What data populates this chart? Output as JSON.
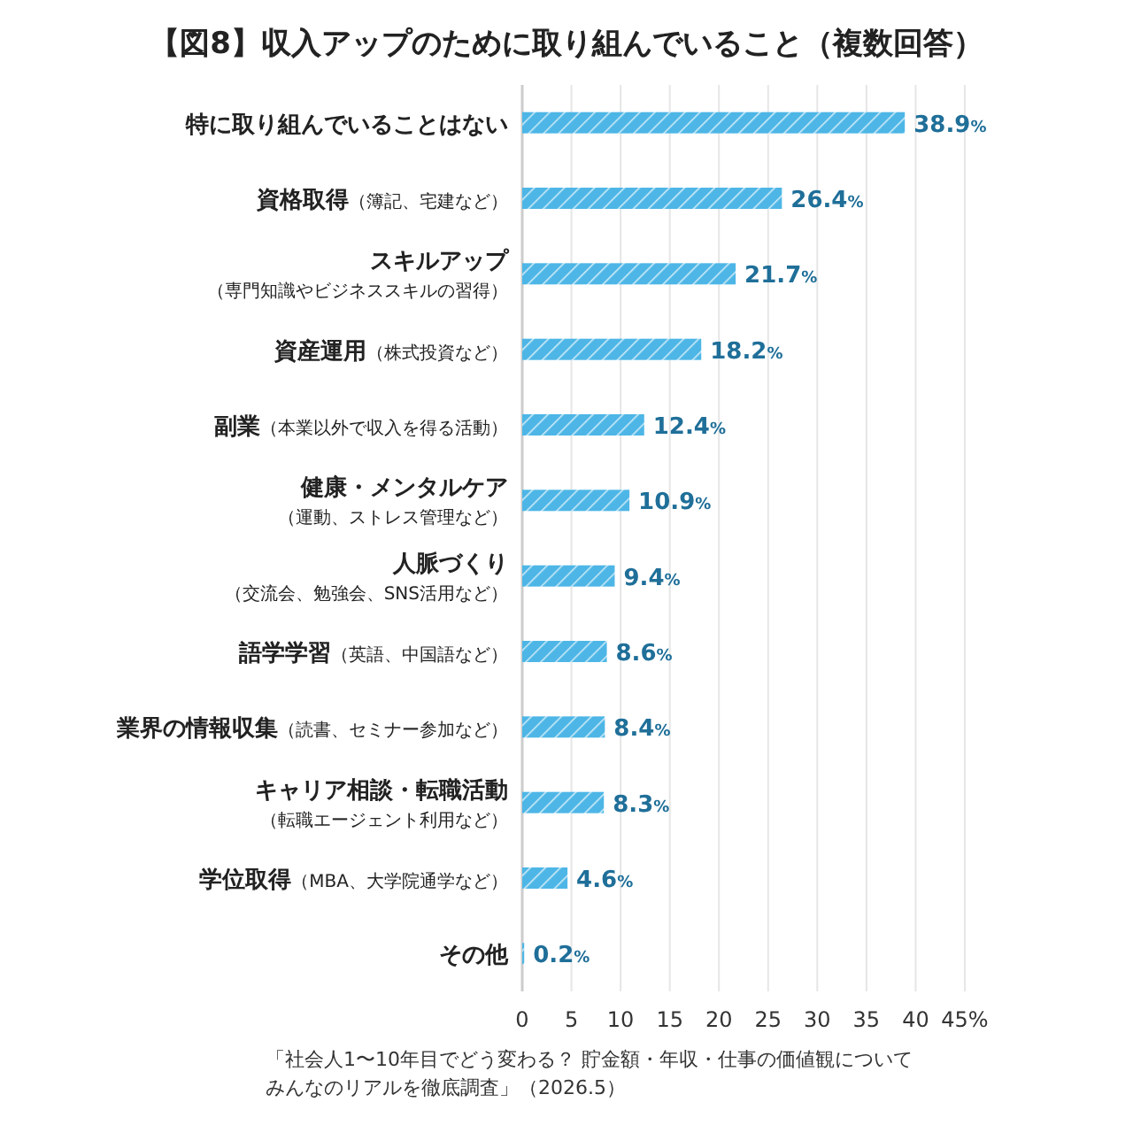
{
  "chart_data": {
    "type": "bar",
    "orientation": "horizontal",
    "title": "【図8】収入アップのために取り組んでいること（複数回答）",
    "categories": [
      "特に取り組んでいることはない",
      "資格取得（簿記、宅建など）",
      "スキルアップ（専門知識やビジネススキルの習得）",
      "資産運用（株式投資など）",
      "副業（本業以外で収入を得る活動）",
      "健康・メンタルケア（運動、ストレス管理など）",
      "人脈づくり（交流会、勉強会、SNS活用など）",
      "語学学習（英語、中国語など）",
      "業界の情報収集（読書、セミナー参加など）",
      "キャリア相談・転職活動（転職エージェント利用など）",
      "学位取得（MBA、大学院通学など）",
      "その他"
    ],
    "values": [
      38.9,
      26.4,
      21.7,
      18.2,
      12.4,
      10.9,
      9.4,
      8.6,
      8.4,
      8.3,
      4.6,
      0.2
    ],
    "value_labels": [
      "38.9%",
      "26.4%",
      "21.7%",
      "18.2%",
      "12.4%",
      "10.9%",
      "9.4%",
      "8.6%",
      "8.4%",
      "8.3%",
      "4.6%",
      "0.2%"
    ],
    "color": "#4db6e6",
    "xlim": [
      0,
      45
    ],
    "xticks": [
      0,
      5,
      10,
      15,
      20,
      25,
      30,
      35,
      40,
      {
        "value": 45,
        "label": "45%"
      }
    ],
    "grid": "x",
    "annotations": [
      "「社会人1〜10年目でどう変わる？ 貯金額・年収・仕事の価値観についてみんなのリアルを徹底調査」（2026.5）"
    ]
  }
}
